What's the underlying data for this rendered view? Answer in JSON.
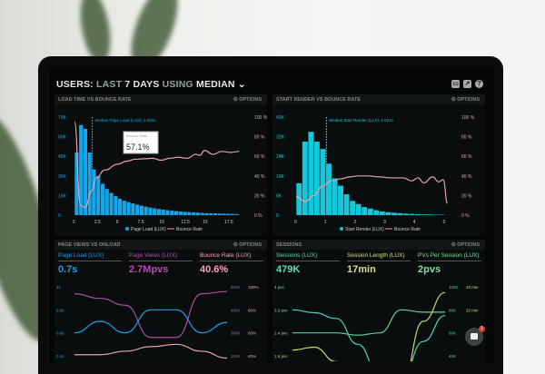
{
  "header": {
    "prefix": "USERS:",
    "dim1": "LAST",
    "bold1": "7 DAYS",
    "dim2": "USING",
    "bold2": "MEDIAN",
    "chevron": "⌄",
    "icons": [
      "monitor-icon",
      "chart-icon",
      "help-icon"
    ]
  },
  "panels": {
    "load": {
      "title": "LOAD TIME VS BOUNCE RATE",
      "options": "⚙ OPTIONS",
      "median": "Median Page Load (LUX): 2.056s",
      "tooltip_label": "Bounce Rate",
      "tooltip_sub": "%",
      "tooltip_value": "57.1%",
      "legend": [
        "Page Load (LUX)",
        "Bounce Rate"
      ]
    },
    "render": {
      "title": "START RENDER VS BOUNCE RATE",
      "options": "⚙ OPTIONS",
      "median": "Median Start Render (LUX): 1.021s",
      "legend": [
        "Start Render (LUX)",
        "Bounce Rate"
      ]
    },
    "views": {
      "title": "PAGE VIEWS VS ONLOAD",
      "options": "⚙ OPTIONS",
      "metrics": [
        {
          "label": "Page Load (LUX)",
          "value": "0.7s",
          "color": "#1e9ce0"
        },
        {
          "label": "Page Views (LUX)",
          "value": "2.7Mpvs",
          "color": "#b24fb0"
        },
        {
          "label": "Bounce Rate (LUX)",
          "value": "40.6%",
          "color": "#f3a5b8"
        }
      ]
    },
    "sessions": {
      "title": "SESSIONS",
      "options": "⚙ OPTIONS",
      "metrics": [
        {
          "label": "Sessions (LUX)",
          "value": "479K",
          "color": "#58e0b5"
        },
        {
          "label": "Session Length (LUX)",
          "value": "17min",
          "color": "#d6e38a"
        },
        {
          "label": "PVs Per Session (LUX)",
          "value": "2pvs",
          "color": "#7ee39a"
        }
      ]
    }
  },
  "chat": {
    "badge": "1"
  },
  "colors": {
    "blue": "#14a6e8",
    "cyan": "#12c9dc",
    "pink": "#e8a0b4",
    "purple": "#a94fa8",
    "teal": "#48d6b8",
    "lime": "#c6d86a"
  },
  "chart_data": [
    {
      "type": "bar",
      "title": "LOAD TIME VS BOUNCE RATE",
      "xlim": [
        0,
        19.5
      ],
      "xticks": [
        "0",
        "2.5",
        "5",
        "7.5",
        "10",
        "12.5",
        "15",
        "17.5"
      ],
      "ylim": [
        0,
        75
      ],
      "yticks": [
        "0",
        "15K",
        "30K",
        "45K",
        "60K",
        "75K"
      ],
      "y2ticks": [
        "0 %",
        "20 %",
        "40 %",
        "60 %",
        "80 %",
        "100 %"
      ],
      "series": [
        {
          "name": "Page Load (LUX)",
          "bin_width": 0.5,
          "values": [
            48,
            69,
            66,
            48,
            35,
            30,
            24,
            20,
            17,
            14.5,
            12.5,
            11,
            10,
            9,
            8,
            7.2,
            6.5,
            5.8,
            5.2,
            4.7,
            4.2,
            3.8,
            3.4,
            3.1,
            2.8,
            2.5,
            2.3,
            2.1,
            1.9,
            1.7,
            1.5,
            1.4,
            1.3,
            1.2,
            1.1,
            1,
            0.9,
            0.8
          ]
        },
        {
          "name": "Bounce Rate",
          "x": [
            0,
            0.7,
            1.2,
            2,
            2.5,
            3.5,
            5,
            6,
            7,
            8,
            9,
            10,
            11,
            12,
            13,
            14,
            14.5,
            15,
            16,
            17,
            18,
            19
          ],
          "values": [
            95,
            10,
            8,
            25,
            38,
            46,
            52,
            55,
            57,
            57.5,
            58,
            56,
            58,
            59,
            58,
            62,
            61,
            66,
            62,
            65,
            64,
            65
          ]
        }
      ]
    },
    {
      "type": "bar",
      "title": "START RENDER VS BOUNCE RATE",
      "xlim": [
        0,
        5.2
      ],
      "xticks": [
        "0",
        "1",
        "2",
        "3",
        "4",
        "5"
      ],
      "ylim": [
        0,
        40
      ],
      "yticks": [
        "0",
        "8K",
        "16K",
        "24K",
        "32K",
        "40K"
      ],
      "y2ticks": [
        "0 %",
        "20 %",
        "40 %",
        "60 %",
        "80 %",
        "100 %"
      ],
      "series": [
        {
          "name": "Start Render (LUX)",
          "bin_width": 0.2,
          "values": [
            13,
            30,
            34,
            30,
            27,
            21,
            15,
            12,
            8.5,
            5.8,
            4.5,
            3.3,
            2.7,
            2,
            1.5,
            1.2,
            1,
            0.8,
            0.6,
            0.5,
            0.4,
            0.3,
            0.3,
            0.2,
            0.2
          ]
        },
        {
          "name": "Bounce Rate",
          "x": [
            0,
            0.3,
            0.6,
            0.9,
            1.2,
            1.5,
            1.8,
            2.1,
            2.4,
            2.8,
            3.2,
            3.6,
            3.9,
            4.1,
            4.3,
            4.6,
            4.8,
            4.95,
            5.1
          ],
          "values": [
            19,
            14,
            20,
            30,
            35,
            37,
            39,
            40,
            40,
            39,
            38,
            38,
            35,
            38,
            33,
            39,
            34,
            36,
            12
          ]
        }
      ]
    },
    {
      "type": "line",
      "title": "PAGE VIEWS VS ONLOAD",
      "yticks": [
        "0.4s",
        "0.6s",
        "0.8s",
        "1s"
      ],
      "y2ticks": [
        "200K",
        "300K",
        "400K",
        "500K"
      ],
      "y3ticks": [
        "40%",
        "60%",
        "80%",
        "100%"
      ],
      "series": [
        {
          "name": "Page Load (LUX)",
          "axis": "s",
          "ylim": [
            0.4,
            1
          ],
          "values": [
            0.6,
            0.7,
            0.6,
            0.8,
            0.8,
            0.6,
            0.69
          ]
        },
        {
          "name": "Page Views (LUX)",
          "axis": "K",
          "ylim": [
            200,
            500
          ],
          "values": [
            470,
            450,
            420,
            280,
            280,
            470,
            480
          ]
        },
        {
          "name": "Bounce Rate (LUX)",
          "axis": "%",
          "ylim": [
            40,
            100
          ],
          "values": [
            41,
            41,
            44,
            48,
            50,
            44,
            38
          ]
        }
      ]
    },
    {
      "type": "line",
      "title": "SESSIONS",
      "yticks": [
        "1.6 pvs",
        "2.4 pvs",
        "3.2 pvs",
        "4 pvs"
      ],
      "y2ticks": [
        "40K",
        "60K",
        "80K",
        "100K"
      ],
      "y3ticks": [
        "24 min",
        "32 min",
        "40 min"
      ],
      "series": [
        {
          "name": "PVs Per Session (LUX)",
          "axis": "pvs",
          "ylim": [
            1.6,
            4
          ],
          "values": [
            3.2,
            3.1,
            2.9,
            2.0,
            0.9,
            0.8,
            2.1,
            3.0
          ]
        },
        {
          "name": "Sessions (LUX)",
          "axis": "K",
          "ylim": [
            40,
            100
          ],
          "values": [
            60,
            60,
            60,
            58,
            60,
            80,
            78,
            78
          ]
        },
        {
          "name": "Session Length (LUX)",
          "axis": "min",
          "ylim": [
            16,
            40
          ],
          "values": [
            18,
            19,
            14,
            8,
            4,
            6,
            28,
            38
          ]
        }
      ]
    }
  ]
}
